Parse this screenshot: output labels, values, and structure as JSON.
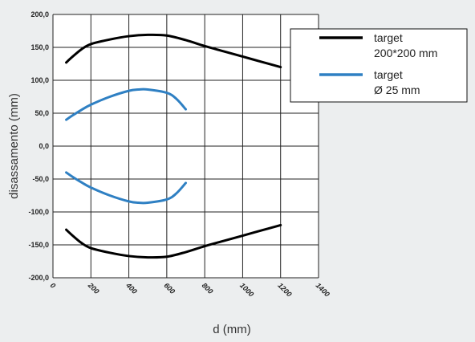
{
  "chart_data": {
    "type": "line",
    "title": "",
    "xlabel": "d (mm)",
    "ylabel": "disassamento (mm)",
    "xlim": [
      0,
      1400
    ],
    "ylim": [
      -200,
      200
    ],
    "x_ticks": [
      "0",
      "200",
      "400",
      "600",
      "800",
      "1000",
      "1200",
      "1400"
    ],
    "y_ticks": [
      "200,0",
      "150,0",
      "100,0",
      "50,0",
      "0,0",
      "-50,0",
      "-100,0",
      "-150,0",
      "-200,0"
    ],
    "grid": true,
    "legend_position": "top-right",
    "series": [
      {
        "name": "target 200*200 mm",
        "legend_lines": [
          "target",
          "200*200 mm"
        ],
        "color": "#000000",
        "x": [
          70,
          100,
          150,
          200,
          300,
          400,
          500,
          600,
          700,
          800,
          900,
          1000,
          1100,
          1200
        ],
        "upper": [
          127,
          135,
          147,
          155,
          162,
          167,
          169,
          168,
          161,
          152,
          144,
          136,
          128,
          120
        ],
        "lower": [
          -127,
          -135,
          -147,
          -155,
          -162,
          -167,
          -169,
          -168,
          -161,
          -152,
          -144,
          -136,
          -128,
          -120
        ]
      },
      {
        "name": "target Ø 25 mm",
        "legend_lines": [
          "target",
          "Ø 25 mm"
        ],
        "color": "#2f80c3",
        "x": [
          70,
          100,
          150,
          200,
          300,
          400,
          450,
          500,
          600,
          650,
          700
        ],
        "upper": [
          40,
          46,
          55,
          63,
          75,
          84,
          86,
          86,
          81,
          72,
          56
        ],
        "lower": [
          -40,
          -46,
          -55,
          -63,
          -75,
          -84,
          -86,
          -86,
          -81,
          -72,
          -56
        ]
      }
    ]
  }
}
